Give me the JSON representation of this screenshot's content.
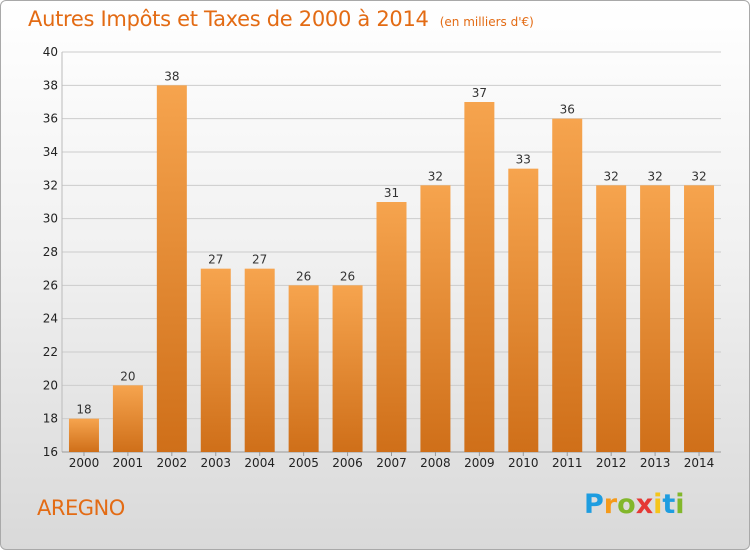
{
  "header": {
    "title": "Autres Impôts et Taxes de 2000 à 2014",
    "unit": "(en milliers d'€)"
  },
  "footer": {
    "commune": "AREGNO",
    "logo": "Proxiti",
    "logo_colors": [
      "#1e9de0",
      "#f59a1a",
      "#82b72b",
      "#e53935",
      "#f5c51a",
      "#1e9de0",
      "#82b72b"
    ]
  },
  "colors": {
    "bar_top": "#f6a44e",
    "bar_bottom": "#cf6f19",
    "title": "#e36b14",
    "grid": "#cccccc"
  },
  "chart_data": {
    "type": "bar",
    "categories": [
      "2000",
      "2001",
      "2002",
      "2003",
      "2004",
      "2005",
      "2006",
      "2007",
      "2008",
      "2009",
      "2010",
      "2011",
      "2012",
      "2013",
      "2014"
    ],
    "values": [
      18,
      20,
      38,
      27,
      27,
      26,
      26,
      31,
      32,
      37,
      33,
      36,
      32,
      32,
      32
    ],
    "ylim": [
      16,
      40
    ],
    "yticks": [
      16,
      18,
      20,
      22,
      24,
      26,
      28,
      30,
      32,
      34,
      36,
      38,
      40
    ],
    "grid": true,
    "data_labels": true,
    "title": "Autres Impôts et Taxes de 2000 à 2014",
    "xlabel": "",
    "ylabel": ""
  }
}
